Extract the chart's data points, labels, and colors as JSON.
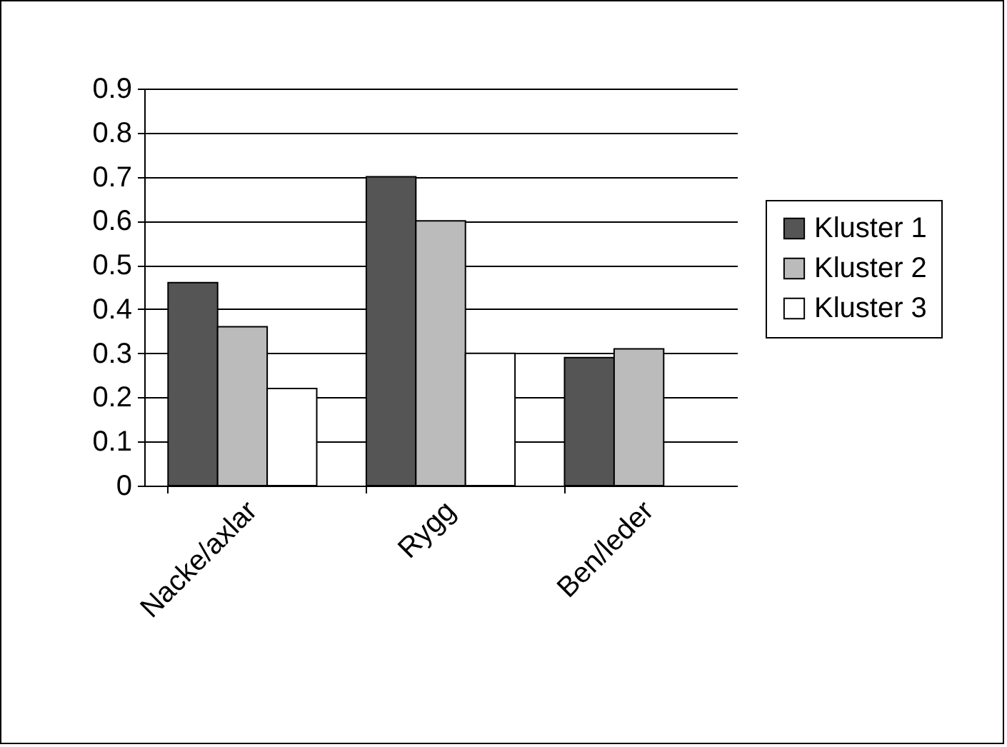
{
  "chart_data": {
    "type": "bar",
    "categories": [
      "Nacke/axlar",
      "Rygg",
      "Ben/leder"
    ],
    "series": [
      {
        "name": "Kluster 1",
        "color": "#555555",
        "values": [
          0.46,
          0.7,
          0.29
        ]
      },
      {
        "name": "Kluster 2",
        "color": "#bbbbbb",
        "values": [
          0.36,
          0.6,
          0.31
        ]
      },
      {
        "name": "Kluster 3",
        "color": "#ffffff",
        "values": [
          0.22,
          0.3,
          null
        ]
      }
    ],
    "ylim": [
      0,
      0.9
    ],
    "yticks": [
      0,
      0.1,
      0.2,
      0.3,
      0.4,
      0.5,
      0.6,
      0.7,
      0.8,
      0.9
    ],
    "grid": "y",
    "legend": "right"
  }
}
